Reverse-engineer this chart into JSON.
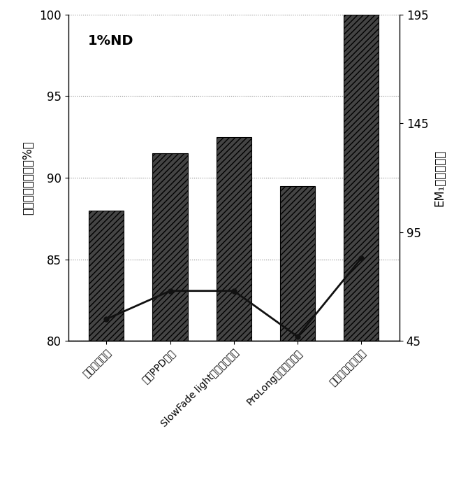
{
  "categories": [
    "传统甘油方案",
    "传统PPD方案",
    "SlowFade light（商品试剂）",
    "ProLong（商品试剂）",
    "本发明荧光封固液"
  ],
  "bar_values": [
    88.0,
    91.5,
    92.5,
    89.5,
    100.0
  ],
  "line_values": [
    55,
    68,
    68,
    47,
    83
  ],
  "left_ylim": [
    80,
    100
  ],
  "left_yticks": [
    80,
    85,
    90,
    95,
    100
  ],
  "right_ylim": [
    45,
    195
  ],
  "right_yticks": [
    45,
    95,
    145,
    195
  ],
  "left_ylabel": "抗荧光衰减系数（%）",
  "right_ylabel": "EM₁値（亮度）",
  "annotation": "1%ND",
  "bar_color": "#444444",
  "line_color": "#111111",
  "hatch": "////",
  "bar_width": 0.55,
  "bg_color": "#ffffff"
}
